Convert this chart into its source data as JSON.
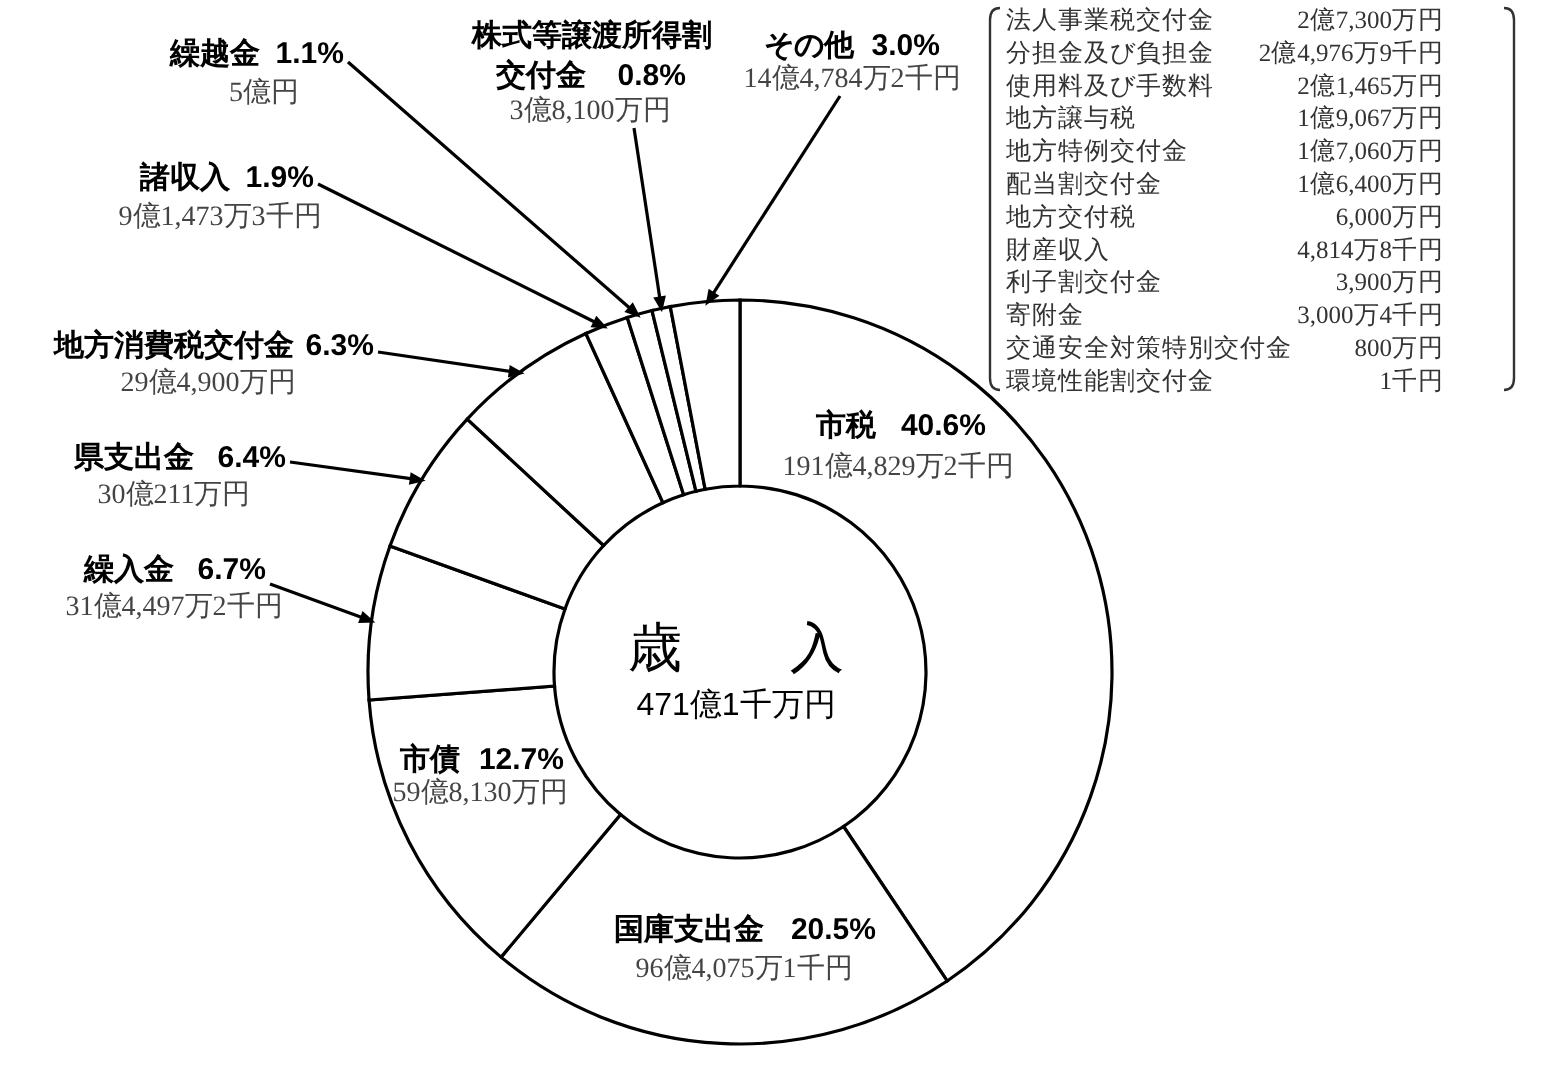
{
  "chart_data": {
    "type": "donut",
    "title": "歳　　入",
    "subtitle": "471億1千万円",
    "categories": [
      "市税",
      "国庫支出金",
      "市債",
      "繰入金",
      "県支出金",
      "地方消費税交付金",
      "諸収入",
      "繰越金",
      "株式等譲渡所得割交付金",
      "その他"
    ],
    "values": [
      40.6,
      20.5,
      12.7,
      6.7,
      6.4,
      6.3,
      1.9,
      1.1,
      0.8,
      3.0
    ],
    "value_labels": [
      "40.6%",
      "20.5%",
      "12.7%",
      "6.7%",
      "6.4%",
      "6.3%",
      "1.9%",
      "1.1%",
      "0.8%",
      "3.0%"
    ],
    "colors": [
      "#ffffff",
      "#ffffff",
      "#ffffff",
      "#ffffff",
      "#ffffff",
      "#ffffff",
      "#ffffff",
      "#ffffff",
      "#ffffff",
      "#ffffff"
    ],
    "annotations": [
      {
        "text": "191億4,829万2千円",
        "x": "市税"
      },
      {
        "text": "96億4,075万1千円",
        "x": "国庫支出金"
      },
      {
        "text": "59億8,130万円",
        "x": "市債"
      },
      {
        "text": "31億4,497万2千円",
        "x": "繰入金"
      },
      {
        "text": "30億211万円",
        "x": "県支出金"
      },
      {
        "text": "29億4,900万円",
        "x": "地方消費税交付金"
      },
      {
        "text": "9億1,473万3千円",
        "x": "諸収入"
      },
      {
        "text": "5億円",
        "x": "繰越金"
      },
      {
        "text": "3億8,100万円",
        "x": "株式等譲渡所得割交付金"
      },
      {
        "text": "14億4,784万2千円",
        "x": "その他"
      },
      "法人事業税交付金 2億7,300万円",
      "分担金及び負担金 2億4,976万9千円",
      "使用料及び手数料 2億1,465万円",
      "地方譲与税 1億9,067万円",
      "地方特例交付金 1億7,060万円",
      "配当割交付金 1億6,400万円",
      "地方交付税 6,000万円",
      "財産収入 4,814万8千円",
      "利子割交付金 3,900万円",
      "寄附金 3,000万4千円",
      "交通安全対策特別交付金 800万円",
      "環境性能割交付金 1千円"
    ]
  }
}
